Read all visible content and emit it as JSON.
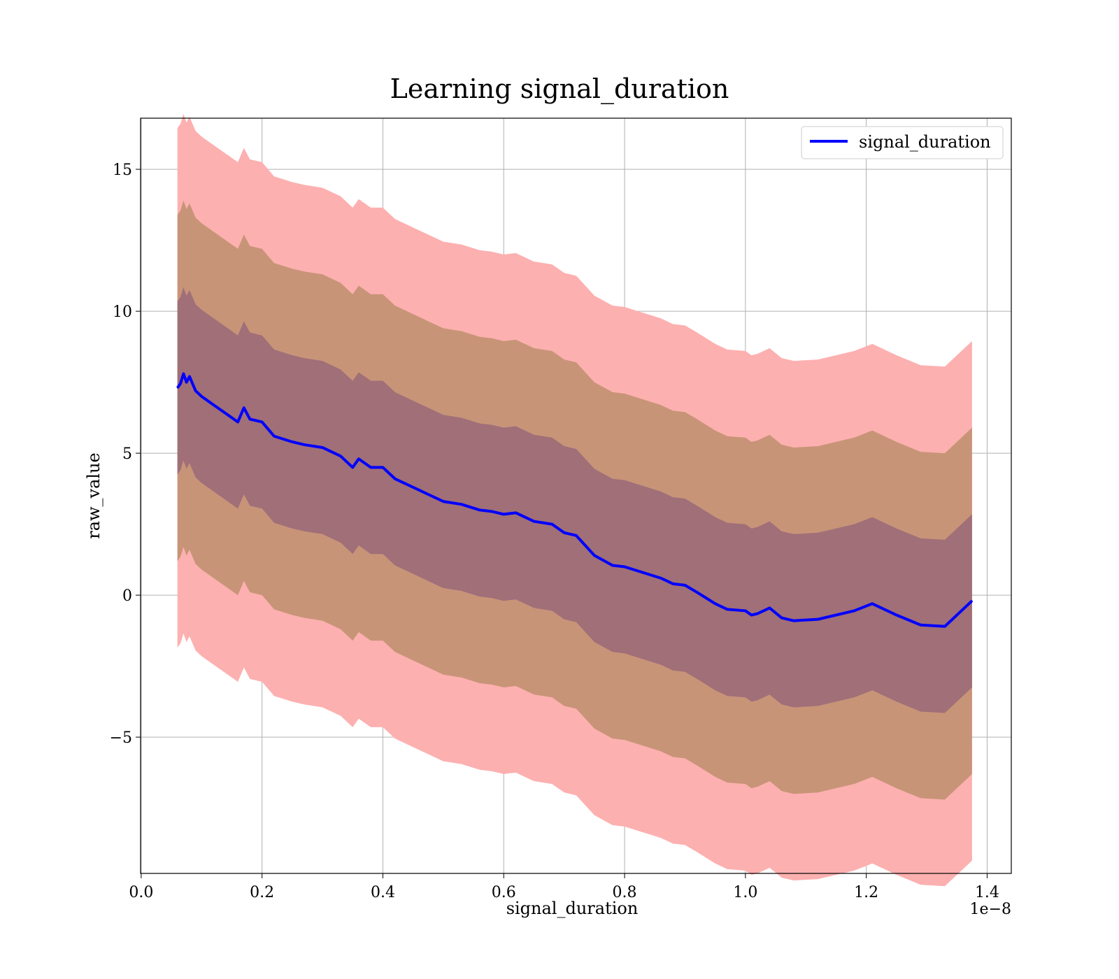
{
  "chart_data": {
    "type": "line",
    "title": "Learning signal_duration",
    "xlabel": "signal_duration",
    "ylabel": "raw_value",
    "x_offset_text": "1e−8",
    "x_scale_exponent": -8,
    "xlim": [
      -1e-11,
      1.44e-08
    ],
    "ylim": [
      -9.8,
      16.8
    ],
    "xticks": [
      0.0,
      2e-09,
      4e-09,
      6e-09,
      8e-09,
      1e-08,
      1.2e-08,
      1.4e-08
    ],
    "xtick_labels": [
      "0.0",
      "0.2",
      "0.4",
      "0.6",
      "0.8",
      "1.0",
      "1.2",
      "1.4"
    ],
    "yticks": [
      -5,
      0,
      5,
      10,
      15
    ],
    "ytick_labels": [
      "−5",
      "0",
      "5",
      "10",
      "15"
    ],
    "grid": true,
    "legend": {
      "position": "top-right",
      "entries": [
        "signal_duration"
      ]
    },
    "colors": {
      "line": "#0000ff",
      "band_3sd": "#fdb0b0",
      "band_2sd": "#c89478",
      "band_1sd": "#a06f78"
    },
    "band_offsets_sd": [
      1,
      2,
      3
    ],
    "band_sd": 3.05,
    "series": [
      {
        "name": "signal_duration",
        "x": [
          6e-10,
          6.5e-10,
          7e-10,
          7.5e-10,
          8e-10,
          9e-10,
          1e-09,
          1.2e-09,
          1.4e-09,
          1.6e-09,
          1.7e-09,
          1.8e-09,
          2e-09,
          2.2e-09,
          2.5e-09,
          2.7e-09,
          3e-09,
          3.3e-09,
          3.5e-09,
          3.6e-09,
          3.8e-09,
          4e-09,
          4.2e-09,
          4.5e-09,
          4.8e-09,
          5e-09,
          5.3e-09,
          5.6e-09,
          5.8e-09,
          6e-09,
          6.2e-09,
          6.5e-09,
          6.8e-09,
          7e-09,
          7.2e-09,
          7.5e-09,
          7.8e-09,
          8e-09,
          8.3e-09,
          8.6e-09,
          8.8e-09,
          9e-09,
          9.2e-09,
          9.5e-09,
          9.7e-09,
          1e-08,
          1.01e-08,
          1.02e-08,
          1.04e-08,
          1.06e-08,
          1.08e-08,
          1.12e-08,
          1.18e-08,
          1.21e-08,
          1.25e-08,
          1.29e-08,
          1.33e-08,
          1.375e-08
        ],
        "values": [
          7.3,
          7.45,
          7.8,
          7.5,
          7.7,
          7.2,
          7.0,
          6.7,
          6.4,
          6.1,
          6.6,
          6.2,
          6.1,
          5.6,
          5.4,
          5.3,
          5.2,
          4.9,
          4.5,
          4.8,
          4.5,
          4.5,
          4.1,
          3.8,
          3.5,
          3.3,
          3.2,
          3.0,
          2.95,
          2.85,
          2.9,
          2.6,
          2.5,
          2.2,
          2.1,
          1.4,
          1.05,
          1.0,
          0.8,
          0.6,
          0.4,
          0.35,
          0.1,
          -0.3,
          -0.5,
          -0.55,
          -0.7,
          -0.65,
          -0.45,
          -0.8,
          -0.9,
          -0.85,
          -0.55,
          -0.3,
          -0.7,
          -1.05,
          -1.1,
          -0.2
        ]
      }
    ]
  }
}
